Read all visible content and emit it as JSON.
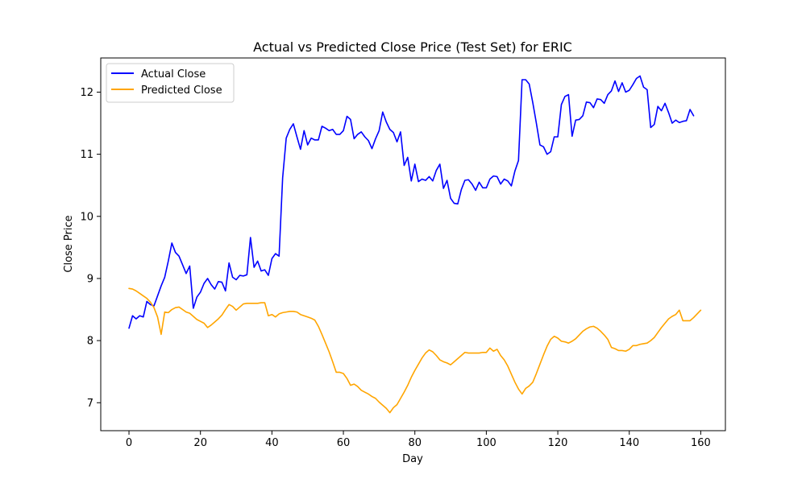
{
  "chart_data": {
    "type": "line",
    "title": "Actual vs Predicted Close Price (Test Set) for ERIC",
    "xlabel": "Day",
    "ylabel": "Close Price",
    "xlim": [
      -7.9,
      166.9
    ],
    "ylim": [
      6.55,
      12.55
    ],
    "xticks": [
      0,
      20,
      40,
      60,
      80,
      100,
      120,
      140,
      160
    ],
    "yticks": [
      7,
      8,
      9,
      10,
      11,
      12
    ],
    "grid": false,
    "legend_position": "upper-left",
    "series": [
      {
        "name": "Actual Close",
        "color": "#0000ff",
        "values": [
          8.2,
          8.4,
          8.35,
          8.4,
          8.38,
          8.63,
          8.58,
          8.56,
          8.72,
          8.88,
          9.02,
          9.28,
          9.57,
          9.42,
          9.36,
          9.22,
          9.08,
          9.2,
          8.52,
          8.7,
          8.78,
          8.92,
          9.0,
          8.9,
          8.83,
          8.95,
          8.94,
          8.8,
          9.25,
          9.02,
          8.98,
          9.05,
          9.04,
          9.06,
          9.66,
          9.18,
          9.28,
          9.12,
          9.14,
          9.05,
          9.32,
          9.4,
          9.36,
          10.62,
          11.26,
          11.4,
          11.49,
          11.28,
          11.08,
          11.38,
          11.15,
          11.26,
          11.23,
          11.23,
          11.45,
          11.42,
          11.38,
          11.4,
          11.32,
          11.32,
          11.38,
          11.61,
          11.56,
          11.25,
          11.32,
          11.36,
          11.28,
          11.22,
          11.09,
          11.25,
          11.38,
          11.68,
          11.52,
          11.4,
          11.35,
          11.2,
          11.36,
          10.82,
          10.95,
          10.57,
          10.84,
          10.56,
          10.6,
          10.58,
          10.64,
          10.57,
          10.74,
          10.84,
          10.45,
          10.58,
          10.29,
          10.21,
          10.2,
          10.43,
          10.58,
          10.59,
          10.52,
          10.42,
          10.55,
          10.46,
          10.46,
          10.6,
          10.65,
          10.64,
          10.52,
          10.6,
          10.57,
          10.49,
          10.73,
          10.9,
          12.2,
          12.2,
          12.13,
          11.83,
          11.5,
          11.15,
          11.12,
          11.0,
          11.04,
          11.28,
          11.28,
          11.8,
          11.93,
          11.96,
          11.29,
          11.55,
          11.56,
          11.62,
          11.84,
          11.83,
          11.75,
          11.89,
          11.88,
          11.82,
          11.96,
          12.02,
          12.18,
          12.01,
          12.15,
          12.0,
          12.03,
          12.12,
          12.22,
          12.26,
          12.08,
          12.04,
          11.43,
          11.48,
          11.77,
          11.7,
          11.82,
          11.67,
          11.5,
          11.55,
          11.51,
          11.53,
          11.54,
          11.72,
          11.62
        ]
      },
      {
        "name": "Predicted Close",
        "color": "#ffa500",
        "values": [
          8.84,
          8.83,
          8.8,
          8.76,
          8.72,
          8.68,
          8.62,
          8.53,
          8.38,
          8.1,
          8.46,
          8.45,
          8.5,
          8.53,
          8.54,
          8.5,
          8.46,
          8.44,
          8.39,
          8.34,
          8.31,
          8.28,
          8.21,
          8.25,
          8.3,
          8.35,
          8.41,
          8.5,
          8.58,
          8.55,
          8.49,
          8.54,
          8.59,
          8.6,
          8.6,
          8.6,
          8.6,
          8.61,
          8.61,
          8.4,
          8.42,
          8.38,
          8.43,
          8.45,
          8.46,
          8.47,
          8.47,
          8.46,
          8.42,
          8.4,
          8.38,
          8.36,
          8.33,
          8.23,
          8.1,
          7.96,
          7.82,
          7.66,
          7.49,
          7.49,
          7.47,
          7.39,
          7.28,
          7.3,
          7.26,
          7.2,
          7.17,
          7.14,
          7.1,
          7.07,
          7.01,
          6.96,
          6.91,
          6.84,
          6.92,
          6.97,
          7.07,
          7.17,
          7.28,
          7.41,
          7.52,
          7.62,
          7.72,
          7.8,
          7.85,
          7.82,
          7.76,
          7.69,
          7.66,
          7.64,
          7.61,
          7.66,
          7.71,
          7.76,
          7.81,
          7.8,
          7.8,
          7.8,
          7.8,
          7.81,
          7.81,
          7.88,
          7.83,
          7.86,
          7.76,
          7.69,
          7.59,
          7.46,
          7.33,
          7.22,
          7.14,
          7.23,
          7.27,
          7.33,
          7.47,
          7.62,
          7.77,
          7.91,
          8.02,
          8.07,
          8.04,
          7.99,
          7.98,
          7.96,
          7.99,
          8.03,
          8.09,
          8.15,
          8.19,
          8.22,
          8.23,
          8.2,
          8.15,
          8.09,
          8.02,
          7.89,
          7.87,
          7.84,
          7.84,
          7.83,
          7.86,
          7.92,
          7.92,
          7.94,
          7.95,
          7.96,
          8.0,
          8.05,
          8.13,
          8.21,
          8.28,
          8.35,
          8.39,
          8.42,
          8.49,
          8.32,
          8.32,
          8.32,
          8.37,
          8.43,
          8.49
        ]
      }
    ]
  }
}
